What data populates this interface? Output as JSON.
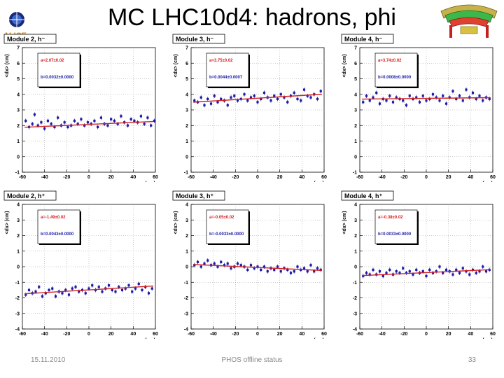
{
  "slide": {
    "title": "MC LHC10d4: hadrons, phi",
    "logo_text": "ALICE",
    "footer_date": "15.11.2010",
    "footer_center": "PHOS offline status",
    "page_number": "33"
  },
  "colors": {
    "points": "#1a1aa8",
    "fit": "#d42020",
    "fit_text": "#d42020",
    "fit_text2": "#1a1aa8"
  },
  "chart_data": [
    {
      "type": "scatter",
      "title": "Module 2, h⁻",
      "ylabel": "<dx> (cm)",
      "xlabel": "x (cm)",
      "xlim": [
        -60,
        60
      ],
      "ylim": [
        -1,
        7
      ],
      "xticks": [
        -60,
        -40,
        -20,
        0,
        20,
        40,
        60
      ],
      "yticks": [
        -1,
        0,
        1,
        2,
        3,
        4,
        5,
        6,
        7
      ],
      "fit": {
        "a": 2.07,
        "b": 0.0032,
        "a_label": "a=2.07±0.02",
        "b_label": "b=0.0032±0.0000"
      },
      "series": [
        {
          "x": [
            -57,
            -54,
            -51,
            -49,
            -46,
            -43,
            -40,
            -37,
            -34,
            -31,
            -28,
            -25,
            -22,
            -19,
            -16,
            -13,
            -10,
            -7,
            -4,
            -1,
            2,
            5,
            8,
            11,
            14,
            17,
            20,
            23,
            26,
            29,
            32,
            35,
            38,
            41,
            44,
            47,
            50,
            53,
            56,
            59
          ],
          "y": [
            2.3,
            1.9,
            2.1,
            2.7,
            2.0,
            2.2,
            1.8,
            2.3,
            2.1,
            1.9,
            2.5,
            2.0,
            2.2,
            1.9,
            2.0,
            2.3,
            2.1,
            2.4,
            2.0,
            2.2,
            2.1,
            2.3,
            1.9,
            2.5,
            2.1,
            2.0,
            2.4,
            2.3,
            2.1,
            2.6,
            2.2,
            2.0,
            2.4,
            2.3,
            2.2,
            2.6,
            2.1,
            2.5,
            2.0,
            2.3
          ]
        }
      ]
    },
    {
      "type": "scatter",
      "title": "Module 3, h⁻",
      "ylabel": "<dx> (cm)",
      "xlabel": "x (cm)",
      "xlim": [
        -60,
        60
      ],
      "ylim": [
        -1,
        7
      ],
      "xticks": [
        -60,
        -40,
        -20,
        0,
        20,
        40,
        60
      ],
      "yticks": [
        -1,
        0,
        1,
        2,
        3,
        4,
        5,
        6,
        7
      ],
      "fit": {
        "a": 3.75,
        "b": 0.0044,
        "a_label": "a=3.75±0.02",
        "b_label": "b=0.0044±0.0007"
      },
      "series": [
        {
          "x": [
            -57,
            -54,
            -51,
            -48,
            -45,
            -42,
            -39,
            -36,
            -33,
            -30,
            -27,
            -24,
            -21,
            -18,
            -15,
            -12,
            -9,
            -6,
            -3,
            0,
            3,
            6,
            9,
            12,
            15,
            18,
            21,
            24,
            27,
            30,
            33,
            36,
            39,
            42,
            45,
            48,
            51,
            54,
            57
          ],
          "y": [
            3.6,
            3.5,
            3.8,
            3.3,
            3.7,
            3.4,
            3.9,
            3.5,
            3.7,
            3.6,
            3.3,
            3.8,
            3.9,
            3.6,
            3.7,
            4.0,
            3.6,
            3.8,
            3.9,
            3.5,
            3.7,
            4.1,
            3.8,
            3.6,
            3.9,
            3.7,
            4.0,
            3.8,
            3.5,
            3.9,
            4.1,
            3.7,
            3.6,
            4.3,
            3.9,
            3.8,
            4.0,
            3.7,
            4.2
          ]
        }
      ]
    },
    {
      "type": "scatter",
      "title": "Module 4, h⁻",
      "ylabel": "<dx> (cm)",
      "xlabel": "x (cm)",
      "xlim": [
        -60,
        60
      ],
      "ylim": [
        -1,
        7
      ],
      "xticks": [
        -60,
        -40,
        -20,
        0,
        20,
        40,
        60
      ],
      "yticks": [
        -1,
        0,
        1,
        2,
        3,
        4,
        5,
        6,
        7
      ],
      "fit": {
        "a": 3.74,
        "b": 0.0008,
        "a_label": "a=3.74±0.02",
        "b_label": "b=0.0008±0.0000"
      },
      "series": [
        {
          "x": [
            -57,
            -54,
            -51,
            -48,
            -45,
            -42,
            -39,
            -36,
            -33,
            -30,
            -27,
            -24,
            -21,
            -18,
            -15,
            -12,
            -9,
            -6,
            -3,
            0,
            3,
            6,
            9,
            12,
            15,
            18,
            21,
            24,
            27,
            30,
            33,
            36,
            39,
            42,
            45,
            48,
            51,
            54,
            57
          ],
          "y": [
            3.5,
            3.9,
            3.6,
            3.8,
            4.1,
            3.4,
            3.7,
            3.6,
            3.9,
            3.5,
            3.8,
            3.7,
            3.6,
            3.3,
            3.9,
            3.7,
            3.8,
            3.5,
            3.9,
            3.6,
            3.7,
            4.0,
            3.8,
            3.6,
            3.9,
            3.4,
            3.8,
            4.2,
            3.7,
            3.9,
            3.6,
            4.3,
            3.8,
            4.1,
            3.7,
            3.9,
            3.6,
            3.8,
            3.7
          ]
        }
      ]
    },
    {
      "type": "scatter",
      "title": "Module 2, h⁺",
      "ylabel": "<dx> (cm)",
      "xlabel": "x (cm)",
      "xlim": [
        -60,
        60
      ],
      "ylim": [
        -4,
        4
      ],
      "xticks": [
        -60,
        -40,
        -20,
        0,
        20,
        40,
        60
      ],
      "yticks": [
        -4,
        -3,
        -2,
        -1,
        0,
        1,
        2,
        3,
        4
      ],
      "fit": {
        "a": -1.49,
        "b": 0.0043,
        "a_label": "a=-1.49±0.02",
        "b_label": "b=0.0043±0.0000"
      },
      "series": [
        {
          "x": [
            -57,
            -54,
            -51,
            -48,
            -45,
            -42,
            -39,
            -36,
            -33,
            -30,
            -27,
            -24,
            -21,
            -18,
            -15,
            -12,
            -9,
            -6,
            -3,
            0,
            3,
            6,
            9,
            12,
            15,
            18,
            21,
            24,
            27,
            30,
            33,
            36,
            39,
            42,
            45,
            48,
            51,
            54,
            57
          ],
          "y": [
            -1.8,
            -1.5,
            -1.7,
            -1.6,
            -1.3,
            -1.9,
            -1.7,
            -1.5,
            -1.4,
            -1.9,
            -1.6,
            -1.7,
            -1.5,
            -1.8,
            -1.4,
            -1.3,
            -1.6,
            -1.5,
            -1.7,
            -1.4,
            -1.2,
            -1.5,
            -1.3,
            -1.6,
            -1.4,
            -1.2,
            -1.5,
            -1.6,
            -1.3,
            -1.5,
            -1.4,
            -1.2,
            -1.6,
            -1.4,
            -1.1,
            -1.5,
            -1.3,
            -1.7,
            -1.4
          ]
        }
      ]
    },
    {
      "type": "scatter",
      "title": "Module 3, h⁺",
      "ylabel": "<dx> (cm)",
      "xlabel": "x (cm)",
      "xlim": [
        -60,
        60
      ],
      "ylim": [
        -4,
        4
      ],
      "xticks": [
        -60,
        -40,
        -20,
        0,
        20,
        40,
        60
      ],
      "yticks": [
        -4,
        -3,
        -2,
        -1,
        0,
        1,
        2,
        3,
        4
      ],
      "fit": {
        "a": -0.05,
        "b": -0.0033,
        "a_label": "a=-0.05±0.02",
        "b_label": "b=-0.0033±0.0000"
      },
      "series": [
        {
          "x": [
            -57,
            -54,
            -51,
            -48,
            -45,
            -42,
            -39,
            -36,
            -33,
            -30,
            -27,
            -24,
            -21,
            -18,
            -15,
            -12,
            -9,
            -6,
            -3,
            0,
            3,
            6,
            9,
            12,
            15,
            18,
            21,
            24,
            27,
            30,
            33,
            36,
            39,
            42,
            45,
            48,
            51,
            54,
            57
          ],
          "y": [
            0.1,
            0.3,
            0.0,
            0.2,
            0.4,
            0.1,
            0.2,
            0.0,
            0.3,
            0.1,
            0.2,
            -0.1,
            0.0,
            0.2,
            0.1,
            0.0,
            -0.2,
            0.1,
            -0.1,
            0.0,
            -0.2,
            0.0,
            -0.3,
            -0.1,
            -0.2,
            0.0,
            -0.3,
            -0.1,
            -0.2,
            -0.4,
            -0.3,
            0.0,
            -0.2,
            -0.1,
            -0.3,
            0.1,
            -0.3,
            -0.1,
            -0.2
          ]
        }
      ]
    },
    {
      "type": "scatter",
      "title": "Module 4, h⁺",
      "ylabel": "<dx> (cm)",
      "xlabel": "x (cm)",
      "xlim": [
        -60,
        60
      ],
      "ylim": [
        -4,
        4
      ],
      "xticks": [
        -60,
        -40,
        -20,
        0,
        20,
        40,
        60
      ],
      "yticks": [
        -4,
        -3,
        -2,
        -1,
        0,
        1,
        2,
        3,
        4
      ],
      "fit": {
        "a": -0.38,
        "b": 0.0033,
        "a_label": "a=-0.38±0.02",
        "b_label": "b=0.0033±0.0000"
      },
      "series": [
        {
          "x": [
            -57,
            -54,
            -51,
            -48,
            -45,
            -42,
            -39,
            -36,
            -33,
            -30,
            -27,
            -24,
            -21,
            -18,
            -15,
            -12,
            -9,
            -6,
            -3,
            0,
            3,
            6,
            9,
            12,
            15,
            18,
            21,
            24,
            27,
            30,
            33,
            36,
            39,
            42,
            45,
            48,
            51,
            54,
            57
          ],
          "y": [
            -0.6,
            -0.4,
            -0.5,
            -0.2,
            -0.5,
            -0.3,
            -0.6,
            -0.4,
            -0.2,
            -0.5,
            -0.3,
            -0.4,
            -0.1,
            -0.4,
            -0.3,
            -0.5,
            -0.2,
            -0.4,
            -0.3,
            -0.6,
            -0.2,
            -0.4,
            -0.3,
            0.0,
            -0.4,
            -0.2,
            -0.3,
            -0.5,
            -0.2,
            -0.4,
            -0.1,
            -0.3,
            -0.5,
            -0.2,
            -0.4,
            -0.3,
            0.0,
            -0.3,
            -0.2
          ]
        }
      ]
    }
  ]
}
